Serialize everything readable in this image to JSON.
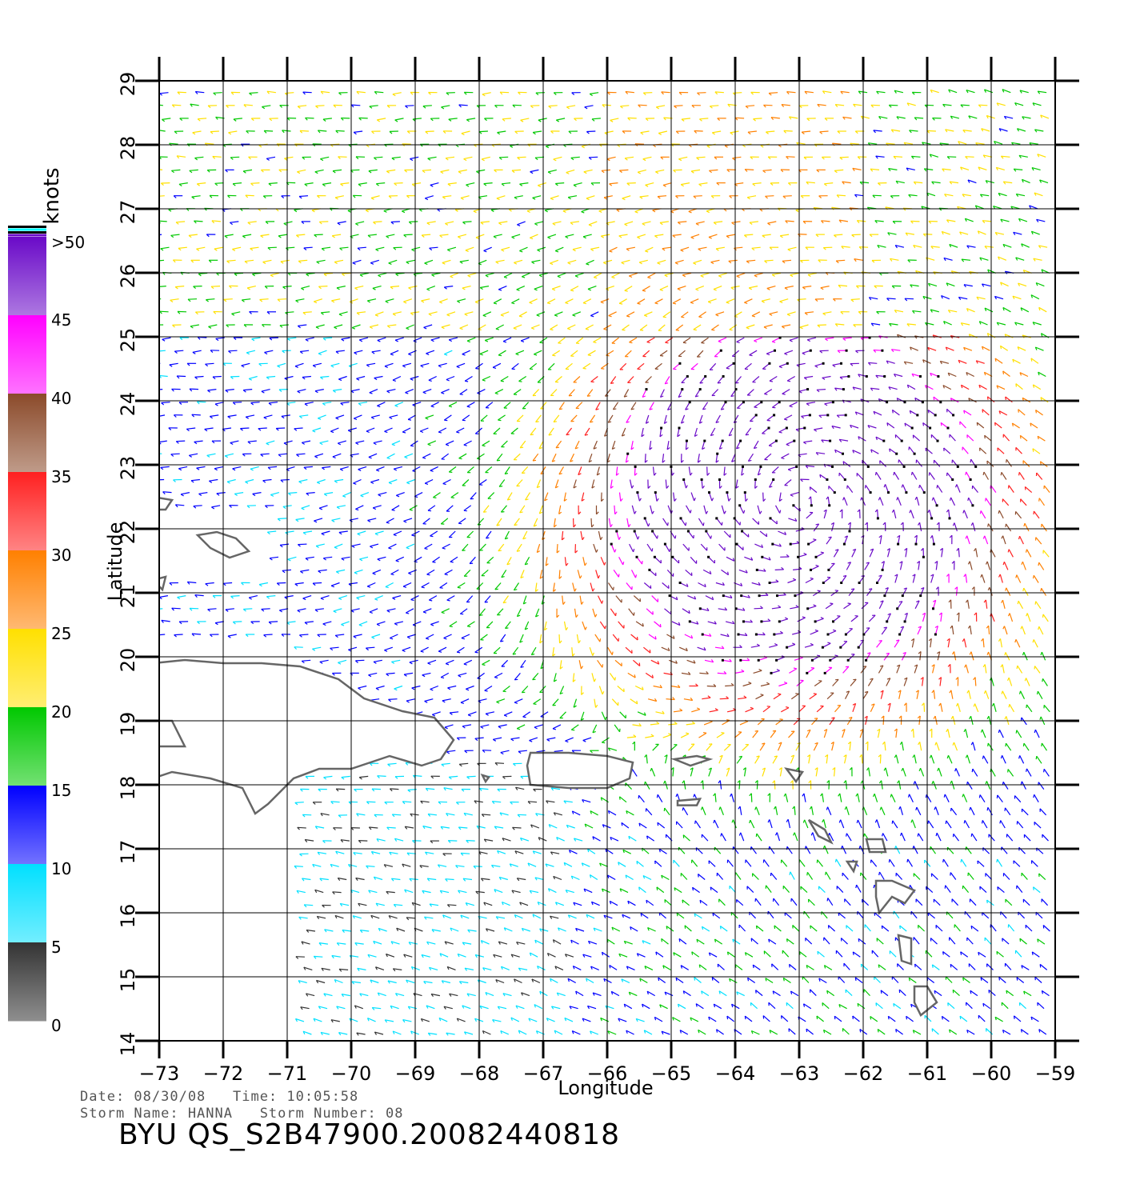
{
  "map": {
    "xlabel": "Longitude",
    "ylabel": "Latitude",
    "lon_range": [
      -73,
      -59
    ],
    "lat_range": [
      14,
      29
    ],
    "lon_ticks": [
      "-73",
      "-72",
      "-71",
      "-70",
      "-69",
      "-68",
      "-67",
      "-66",
      "-65",
      "-64",
      "-63",
      "-62",
      "-61",
      "-60",
      "-59"
    ],
    "lat_ticks": [
      "14",
      "15",
      "16",
      "17",
      "18",
      "19",
      "20",
      "21",
      "22",
      "23",
      "24",
      "25",
      "26",
      "27",
      "28",
      "29"
    ],
    "grid": true,
    "land_outline_color": "#666666",
    "storm_center_lonlat": [
      -63.0,
      22.4
    ]
  },
  "colorbar": {
    "unit": "knots",
    "labels": [
      ">50",
      "45",
      "40",
      "35",
      "30",
      "25",
      "20",
      "15",
      "10",
      "5",
      "0"
    ],
    "bands": [
      {
        "range": "45-50",
        "color": "#6a0ac8"
      },
      {
        "range": "40-45",
        "color": "#ff00ff"
      },
      {
        "range": "35-40",
        "color": "#8b4a2a"
      },
      {
        "range": "30-35",
        "color": "#ff2020"
      },
      {
        "range": "25-30",
        "color": "#ff8000"
      },
      {
        "range": "20-25",
        "color": "#ffe000"
      },
      {
        "range": "15-20",
        "color": "#00c800"
      },
      {
        "range": "10-15",
        "color": "#0000ff"
      },
      {
        "range": "5-10",
        "color": "#00e0ff"
      },
      {
        "range": "0-5",
        "color": "#333333"
      }
    ]
  },
  "footer": {
    "date_line": "Date: 08/30/08   Time: 10:05:58",
    "storm_line": "Storm Name: HANNA   Storm Number: 08",
    "product_id": "BYU  QS_S2B47900.20082440818"
  }
}
